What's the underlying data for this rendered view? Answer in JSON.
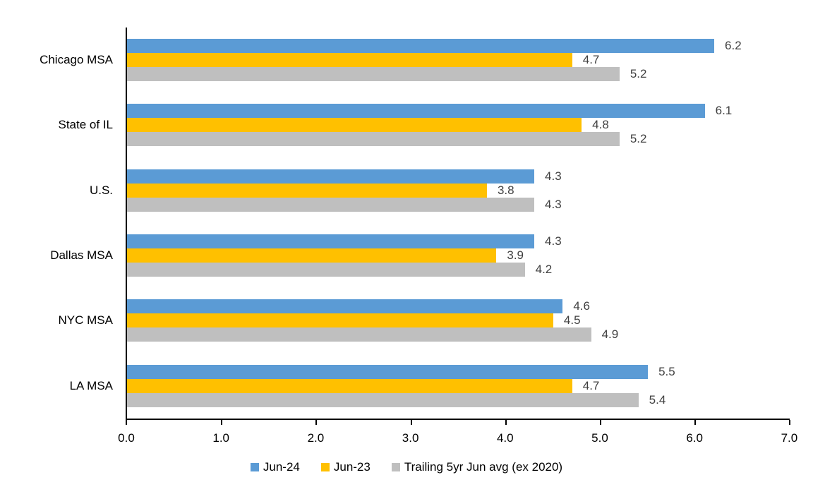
{
  "chart_data": {
    "type": "bar",
    "orientation": "horizontal",
    "title": "",
    "xlabel": "",
    "ylabel": "",
    "categories": [
      "Chicago MSA",
      "State of IL",
      "U.S.",
      "Dallas MSA",
      "NYC MSA",
      "LA MSA"
    ],
    "series": [
      {
        "name": "Jun-24",
        "color": "#5B9BD5",
        "values": [
          6.2,
          6.1,
          4.3,
          4.3,
          4.6,
          5.5
        ]
      },
      {
        "name": "Jun-23",
        "color": "#FFC000",
        "values": [
          4.7,
          4.8,
          3.8,
          3.9,
          4.5,
          4.7
        ]
      },
      {
        "name": "Trailing 5yr Jun avg (ex 2020)",
        "color": "#BFBFBF",
        "values": [
          5.2,
          5.2,
          4.3,
          4.2,
          4.9,
          5.4
        ]
      }
    ],
    "xlim": [
      0.0,
      7.0
    ],
    "xticks": [
      "0.0",
      "1.0",
      "2.0",
      "3.0",
      "4.0",
      "5.0",
      "6.0",
      "7.0"
    ],
    "grid": false,
    "data_labels": true,
    "data_label_color": "#404040",
    "axis_color": "#000000",
    "legend_position": "bottom-center"
  }
}
